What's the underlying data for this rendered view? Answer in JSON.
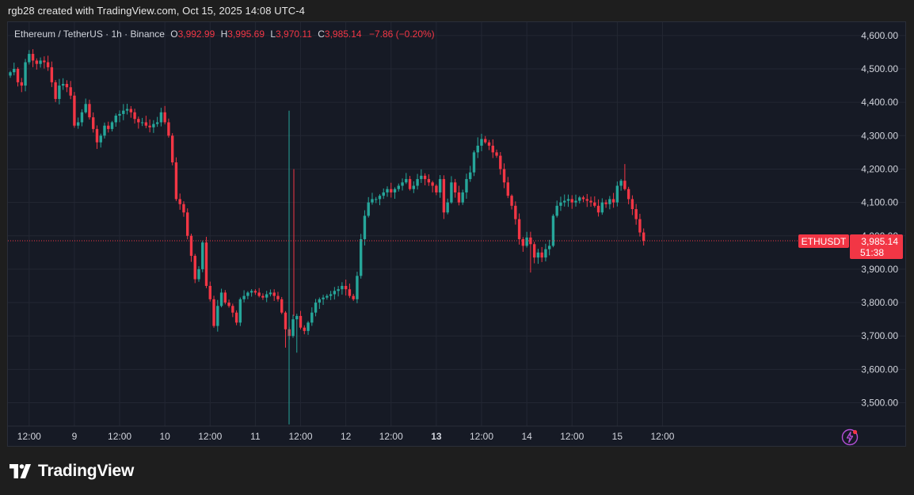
{
  "credit": "rgb28 created with TradingView.com, Oct 15, 2025 14:08 UTC-4",
  "legend": {
    "symbol": "Ethereum / TetherUS · 1h · Binance",
    "o_label": "O",
    "o_value": "3,992.99",
    "h_label": "H",
    "h_value": "3,995.69",
    "l_label": "L",
    "l_value": "3,970.11",
    "c_label": "C",
    "c_value": "3,985.14",
    "change": "−7.86 (−0.20%)"
  },
  "price_tag": {
    "symbol": "ETHUSDT",
    "price": "3,985.14",
    "countdown": "51:38"
  },
  "brand": "TradingView",
  "colors": {
    "up": "#26a69a",
    "down": "#f23645",
    "background": "#161a25",
    "grid": "#232733",
    "text": "#d1d4dc"
  },
  "chart_data": {
    "type": "candlestick",
    "symbol": "ETHUSDT",
    "interval": "1h",
    "exchange": "Binance",
    "ylim": [
      3430,
      4640
    ],
    "y_ticks": [
      3500,
      3600,
      3700,
      3800,
      3900,
      4000,
      4100,
      4200,
      4300,
      4400,
      4500,
      4600
    ],
    "y_tick_labels": [
      "3,500.00",
      "3,600.00",
      "3,700.00",
      "3,800.00",
      "3,900.00",
      "4,000.00",
      "4,100.00",
      "4,200.00",
      "4,300.00",
      "4,400.00",
      "4,500.00",
      "4,600.00"
    ],
    "x_labels": [
      {
        "label": "12:00",
        "bar": 5,
        "bold": false
      },
      {
        "label": "9",
        "bar": 17,
        "bold": false
      },
      {
        "label": "12:00",
        "bar": 29,
        "bold": false
      },
      {
        "label": "10",
        "bar": 41,
        "bold": false
      },
      {
        "label": "12:00",
        "bar": 53,
        "bold": false
      },
      {
        "label": "11",
        "bar": 65,
        "bold": false
      },
      {
        "label": "12:00",
        "bar": 77,
        "bold": false
      },
      {
        "label": "12",
        "bar": 89,
        "bold": false
      },
      {
        "label": "12:00",
        "bar": 101,
        "bold": false
      },
      {
        "label": "13",
        "bar": 113,
        "bold": true
      },
      {
        "label": "12:00",
        "bar": 125,
        "bold": false
      },
      {
        "label": "14",
        "bar": 137,
        "bold": false
      },
      {
        "label": "12:00",
        "bar": 149,
        "bold": false
      },
      {
        "label": "15",
        "bar": 161,
        "bold": false
      },
      {
        "label": "12:00",
        "bar": 173,
        "bold": false
      }
    ],
    "last_price": 3985.14,
    "close": [
      4490,
      4500,
      4460,
      4450,
      4520,
      4545,
      4525,
      4515,
      4525,
      4520,
      4505,
      4460,
      4410,
      4450,
      4455,
      4445,
      4420,
      4330,
      4340,
      4370,
      4395,
      4355,
      4320,
      4280,
      4300,
      4330,
      4320,
      4340,
      4360,
      4365,
      4375,
      4380,
      4370,
      4350,
      4340,
      4340,
      4330,
      4325,
      4335,
      4340,
      4370,
      4340,
      4300,
      4220,
      4110,
      4095,
      4070,
      4000,
      3940,
      3870,
      3900,
      3980,
      3850,
      3810,
      3730,
      3790,
      3830,
      3800,
      3790,
      3770,
      3740,
      3810,
      3820,
      3830,
      3835,
      3830,
      3820,
      3815,
      3825,
      3830,
      3820,
      3810,
      3770,
      3720,
      3700,
      3750,
      3760,
      3725,
      3715,
      3740,
      3770,
      3800,
      3810,
      3815,
      3820,
      3825,
      3835,
      3840,
      3850,
      3840,
      3820,
      3810,
      3880,
      3990,
      4060,
      4100,
      4110,
      4110,
      4120,
      4130,
      4140,
      4130,
      4140,
      4150,
      4160,
      4170,
      4140,
      4150,
      4170,
      4180,
      4170,
      4160,
      4150,
      4130,
      4170,
      4070,
      4100,
      4160,
      4130,
      4100,
      4130,
      4170,
      4190,
      4250,
      4270,
      4290,
      4280,
      4270,
      4250,
      4240,
      4200,
      4160,
      4120,
      4090,
      4050,
      3990,
      3970,
      3995,
      3975,
      3935,
      3950,
      3935,
      3960,
      3970,
      4060,
      4090,
      4100,
      4105,
      4110,
      4100,
      4105,
      4115,
      4110,
      4105,
      4100,
      4090,
      4070,
      4100,
      4095,
      4110,
      4100,
      4150,
      4165,
      4140,
      4110,
      4080,
      4050,
      4010,
      3985
    ]
  }
}
